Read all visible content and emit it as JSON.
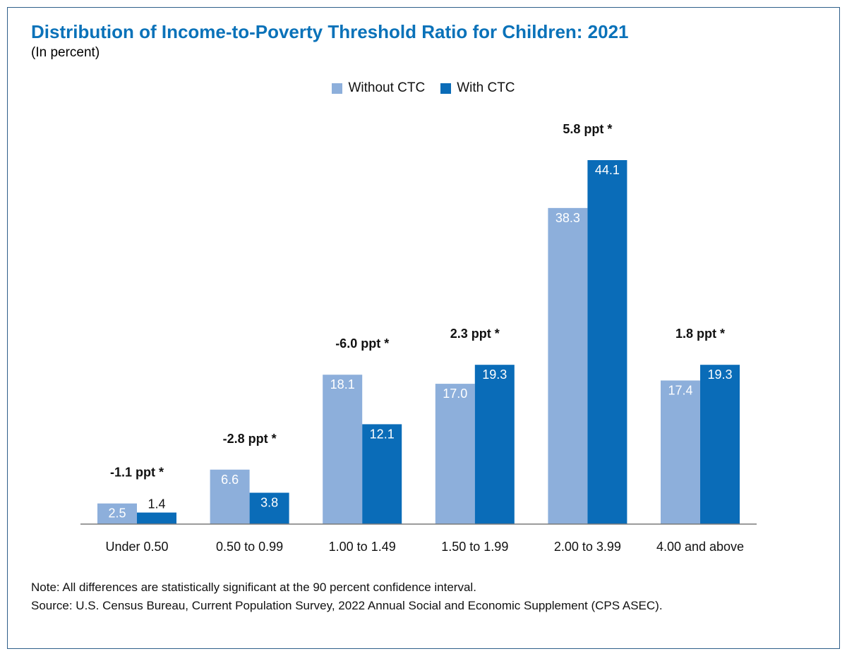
{
  "title": "Distribution of Income-to-Poverty Threshold Ratio for Children: 2021",
  "subtitle": "(In percent)",
  "legend": {
    "without_label": "Without CTC",
    "with_label": "With CTC"
  },
  "colors": {
    "title": "#0a72b9",
    "without": "#8dafdb",
    "with": "#0a6cb8",
    "frame": "#2e5f8a"
  },
  "chart_data": {
    "type": "bar",
    "title": "Distribution of Income-to-Poverty Threshold Ratio for Children: 2021",
    "subtitle": "(In percent)",
    "xlabel": "",
    "ylabel": "",
    "ylim": [
      0,
      44.1
    ],
    "grid": false,
    "legend_position": "top-center",
    "categories": [
      "Under 0.50",
      "0.50 to 0.99",
      "1.00 to 1.49",
      "1.50 to 1.99",
      "2.00 to 3.99",
      "4.00 and above"
    ],
    "series": [
      {
        "name": "Without CTC",
        "values": [
          2.5,
          6.6,
          18.1,
          17.0,
          38.3,
          17.4
        ]
      },
      {
        "name": "With CTC",
        "values": [
          1.4,
          3.8,
          12.1,
          19.3,
          44.1,
          19.3
        ]
      }
    ],
    "value_labels": {
      "without": [
        "2.5",
        "6.6",
        "18.1",
        "17.0",
        "38.3",
        "17.4"
      ],
      "with": [
        "1.4",
        "3.8",
        "12.1",
        "19.3",
        "44.1",
        "19.3"
      ]
    },
    "differences": [
      "-1.1 ppt *",
      "-2.8 ppt *",
      "-6.0 ppt *",
      "2.3 ppt *",
      "5.8 ppt *",
      "1.8 ppt *"
    ]
  },
  "notes": {
    "note": "Note: All differences are statistically significant at the 90 percent confidence interval.",
    "source": "Source: U.S. Census Bureau, Current Population Survey, 2022 Annual Social and Economic Supplement (CPS ASEC)."
  }
}
